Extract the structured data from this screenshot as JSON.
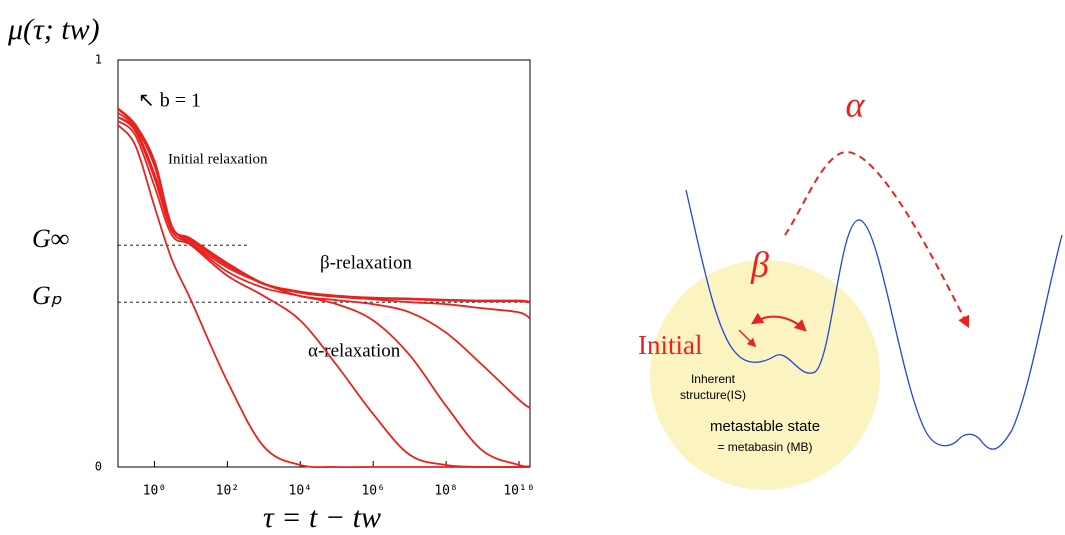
{
  "chart_data": {
    "type": "line",
    "ylabel": "μ(τ; tw)",
    "xlabel": "τ = t − tw",
    "xscale": "log",
    "color": "#e8231f",
    "x": [
      0.1,
      0.3,
      1,
      3,
      10,
      100,
      1000,
      10000,
      100000,
      1000000,
      10000000,
      100000000,
      1000000000,
      10000000000,
      20000000000
    ],
    "series": [
      {
        "color": "#e8231f",
        "values": [
          0.88,
          0.84,
          0.75,
          0.59,
          0.56,
          0.5,
          0.45,
          0.43,
          0.42,
          0.415,
          0.413,
          0.41,
          0.408,
          0.408,
          0.405
        ]
      },
      {
        "color": "#e8231f",
        "values": [
          0.87,
          0.835,
          0.74,
          0.59,
          0.555,
          0.495,
          0.45,
          0.428,
          0.418,
          0.412,
          0.405,
          0.4,
          0.39,
          0.38,
          0.365
        ]
      },
      {
        "color": "#e8231f",
        "values": [
          0.86,
          0.83,
          0.72,
          0.59,
          0.55,
          0.49,
          0.45,
          0.42,
          0.41,
          0.4,
          0.38,
          0.33,
          0.25,
          0.165,
          0.145
        ]
      },
      {
        "color": "#e8231f",
        "values": [
          0.86,
          0.825,
          0.71,
          0.58,
          0.548,
          0.48,
          0.44,
          0.42,
          0.4,
          0.36,
          0.275,
          0.15,
          0.04,
          0.005,
          0.002
        ]
      },
      {
        "color": "#e8231f",
        "values": [
          0.85,
          0.815,
          0.69,
          0.57,
          0.545,
          0.47,
          0.42,
          0.36,
          0.25,
          0.13,
          0.03,
          0.005,
          0,
          0,
          0
        ]
      },
      {
        "color": "#e8231f",
        "values": [
          0.84,
          0.79,
          0.64,
          0.51,
          0.41,
          0.21,
          0.05,
          0.005,
          0,
          0,
          0,
          0,
          0,
          0,
          0
        ]
      }
    ],
    "xlim": [
      0.1,
      20000000000
    ],
    "xticks": [
      {
        "value": 1,
        "label": "10⁰"
      },
      {
        "value": 100,
        "label": "10²"
      },
      {
        "value": 10000,
        "label": "10⁴"
      },
      {
        "value": 1000000,
        "label": "10⁶"
      },
      {
        "value": 100000000,
        "label": "10⁸"
      },
      {
        "value": 10000000000,
        "label": "10¹⁰"
      }
    ],
    "ylim": [
      0,
      1
    ],
    "yticks": [
      0,
      1
    ],
    "levels": [
      {
        "label": "G∞",
        "value": 0.545
      },
      {
        "label": "Gₚ",
        "value": 0.405
      }
    ],
    "annotations": [
      "↖ b = 1",
      "Initial relaxation",
      "β-relaxation",
      "α-relaxation"
    ]
  },
  "diagram": {
    "alpha": "α",
    "beta": "β",
    "initial": "Initial",
    "inherent": [
      "Inherent",
      "structure(IS)"
    ],
    "state": "metastable state",
    "basin": "= metabasin (MB)"
  }
}
